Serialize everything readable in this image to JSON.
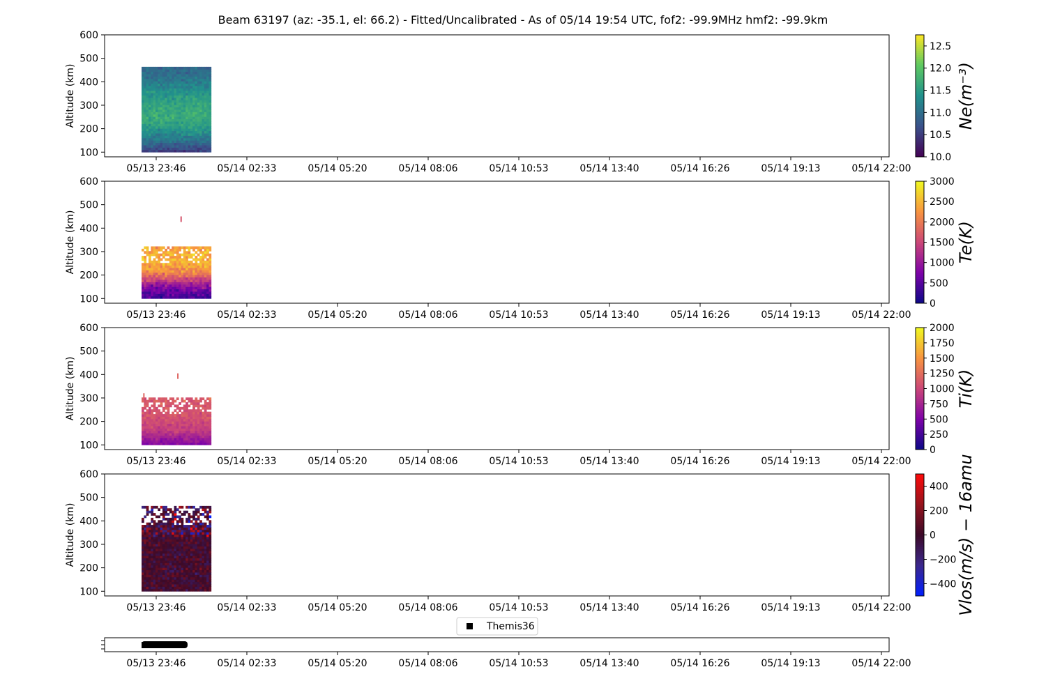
{
  "title": "Beam 63197 (az: -35.1, el: 66.2) - Fitted/Uncalibrated - As of 05/14 19:54 UTC, fof2: -99.9MHz  hmf2: -99.9km",
  "time_ticks": [
    "05/13 23:46",
    "05/14 02:33",
    "05/14 05:20",
    "05/14 08:06",
    "05/14 10:53",
    "05/14 13:40",
    "05/14 16:26",
    "05/14 19:13",
    "05/14 22:00"
  ],
  "legend": {
    "label": "Themis36",
    "color": "#000000"
  },
  "chart_data": [
    {
      "type": "heatmap",
      "ylabel": "Altitude (km)",
      "yticks": [
        100,
        200,
        300,
        400,
        500,
        600
      ],
      "ylim": [
        80,
        600
      ],
      "xlim_hours": [
        -1.1,
        23.5
      ],
      "colorbar": {
        "label": "Ne(m⁻³)",
        "colormap": "viridis",
        "range": [
          10.0,
          12.75
        ],
        "ticks": [
          "10.0",
          "10.5",
          "11.0",
          "11.5",
          "12.0",
          "12.5"
        ],
        "tick_values": [
          10.0,
          10.5,
          11.0,
          11.5,
          12.0,
          12.5
        ]
      },
      "data_extent": {
        "time_hours": [
          0.0,
          0.85
        ],
        "altitude_km": [
          100,
          455
        ]
      },
      "profile": [
        [
          100,
          10.5
        ],
        [
          150,
          11.1
        ],
        [
          200,
          11.5
        ],
        [
          250,
          11.7
        ],
        [
          300,
          11.6
        ],
        [
          350,
          11.4
        ],
        [
          400,
          11.1
        ],
        [
          455,
          10.9
        ]
      ],
      "noise": 0.3
    },
    {
      "type": "heatmap",
      "ylabel": "Altitude (km)",
      "yticks": [
        100,
        200,
        300,
        400,
        500,
        600
      ],
      "ylim": [
        80,
        600
      ],
      "xlim_hours": [
        -1.1,
        23.5
      ],
      "colorbar": {
        "label": "Te(K)",
        "colormap": "plasma",
        "range": [
          0,
          3000
        ],
        "ticks": [
          "0",
          "500",
          "1000",
          "1500",
          "2000",
          "2500",
          "3000"
        ],
        "tick_values": [
          0,
          500,
          1000,
          1500,
          2000,
          2500,
          3000
        ]
      },
      "data_extent": {
        "time_hours": [
          0.0,
          0.85
        ],
        "altitude_km": [
          100,
          320
        ]
      },
      "profile": [
        [
          100,
          350
        ],
        [
          130,
          650
        ],
        [
          160,
          1100
        ],
        [
          190,
          1800
        ],
        [
          220,
          2300
        ],
        [
          260,
          2500
        ],
        [
          300,
          2400
        ],
        [
          320,
          2300
        ]
      ],
      "noise": 500
    },
    {
      "type": "heatmap",
      "ylabel": "Altitude (km)",
      "yticks": [
        100,
        200,
        300,
        400,
        500,
        600
      ],
      "ylim": [
        80,
        600
      ],
      "xlim_hours": [
        -1.1,
        23.5
      ],
      "colorbar": {
        "label": "Ti(K)",
        "colormap": "plasma",
        "range": [
          0,
          2000
        ],
        "ticks": [
          "0",
          "250",
          "500",
          "750",
          "1000",
          "1250",
          "1500",
          "1750",
          "2000"
        ],
        "tick_values": [
          0,
          250,
          500,
          750,
          1000,
          1250,
          1500,
          1750,
          2000
        ]
      },
      "data_extent": {
        "time_hours": [
          0.0,
          0.85
        ],
        "altitude_km": [
          100,
          300
        ]
      },
      "profile": [
        [
          100,
          550
        ],
        [
          130,
          750
        ],
        [
          160,
          950
        ],
        [
          200,
          1050
        ],
        [
          250,
          1100
        ],
        [
          300,
          1150
        ]
      ],
      "noise": 180
    },
    {
      "type": "heatmap",
      "ylabel": "Altitude (km)",
      "yticks": [
        100,
        200,
        300,
        400,
        500,
        600
      ],
      "ylim": [
        80,
        600
      ],
      "xlim_hours": [
        -1.1,
        23.5
      ],
      "colorbar": {
        "label": "Vlos(m/s) − 16amu",
        "colormap": "bwr_dark",
        "range": [
          -500,
          500
        ],
        "ticks": [
          "−400",
          "−200",
          "0",
          "200",
          "400"
        ],
        "tick_values": [
          -400,
          -200,
          0,
          200,
          400
        ]
      },
      "data_extent": {
        "time_hours": [
          0.0,
          0.85
        ],
        "altitude_km": [
          100,
          455
        ]
      },
      "profile": [
        [
          100,
          0
        ],
        [
          455,
          0
        ]
      ],
      "noise": 170
    },
    {
      "type": "scatter",
      "series": [
        {
          "name": "Themis36",
          "x_hours": [
            0.0,
            0.1,
            0.2,
            0.3,
            0.4,
            0.5,
            0.6,
            0.7,
            0.8,
            0.85
          ],
          "y": [
            0,
            0,
            0,
            0,
            0,
            0,
            0,
            0,
            0,
            0
          ]
        }
      ],
      "xlim_hours": [
        -1.1,
        23.5
      ]
    }
  ]
}
